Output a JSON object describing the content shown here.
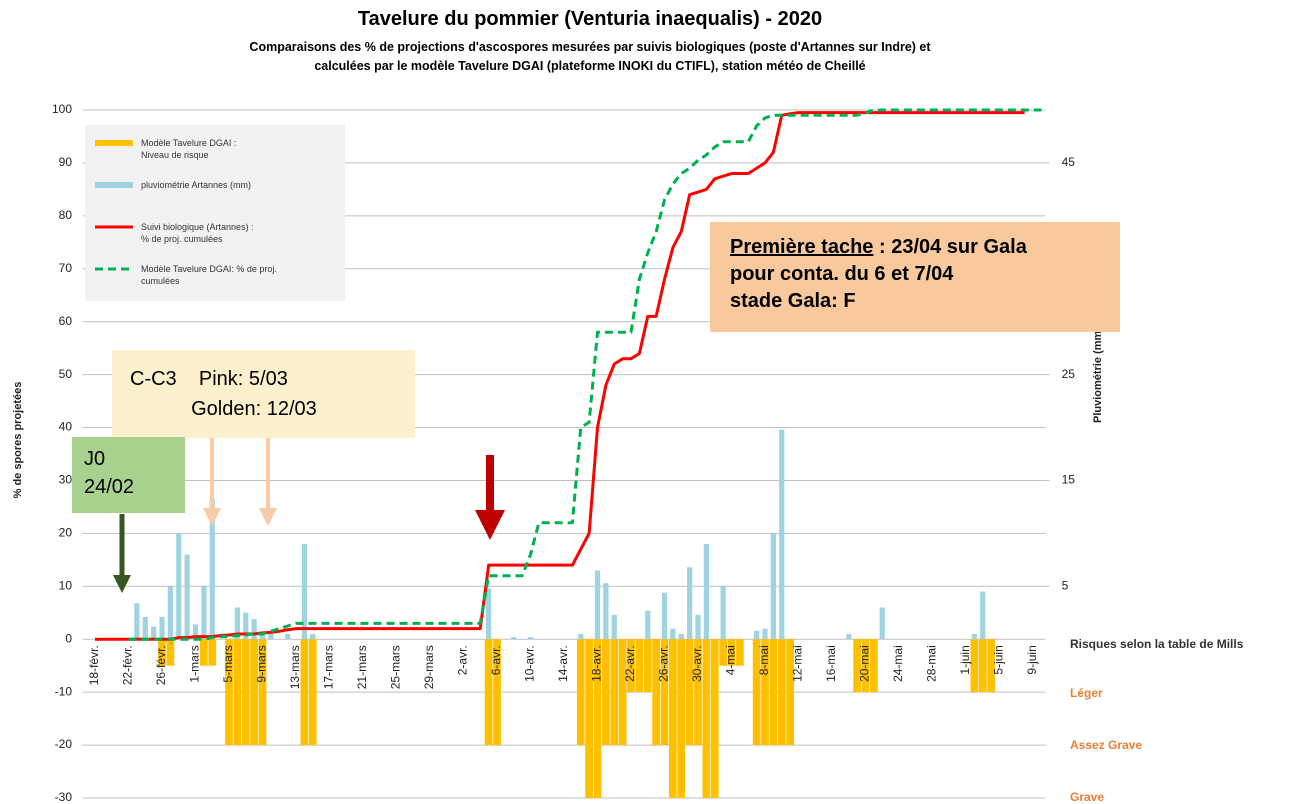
{
  "chart_data": {
    "type": "bar",
    "title": "Tavelure du pommier (Venturia inaequalis) - 2020",
    "subtitle": "Comparaisons des % de projections d'ascospores mesurées par suivis biologiques (poste d'Artannes sur Indre) et\ncalculées par le modèle Tavelure DGAI (plateforme INOKI du CTIFL), station météo de Cheillé",
    "y_label": "% de spores projetées",
    "y2_label": "Pluviométrie (mm)",
    "categories": [
      null,
      "18-févr.",
      null,
      null,
      null,
      "22-févr.",
      null,
      null,
      null,
      "26-févr.",
      null,
      null,
      null,
      "1-mars",
      null,
      null,
      null,
      "5-mars",
      null,
      null,
      null,
      "9-mars",
      null,
      null,
      null,
      "13-mars",
      null,
      null,
      null,
      "17-mars",
      null,
      null,
      null,
      "21-mars",
      null,
      null,
      null,
      "25-mars",
      null,
      null,
      null,
      "29-mars",
      null,
      null,
      null,
      "2-avr.",
      null,
      null,
      null,
      "6-avr.",
      null,
      null,
      null,
      "10-avr.",
      null,
      null,
      null,
      "14-avr.",
      null,
      null,
      null,
      "18-avr.",
      null,
      null,
      null,
      "22-avr.",
      null,
      null,
      null,
      "26-avr.",
      null,
      null,
      null,
      "30-avr.",
      null,
      null,
      null,
      "4-mai",
      null,
      null,
      null,
      "8-mai",
      null,
      null,
      null,
      "12-mai",
      null,
      null,
      null,
      "16-mai",
      null,
      null,
      null,
      "20-mai",
      null,
      null,
      null,
      "24-mai",
      null,
      null,
      null,
      "28-mai",
      null,
      null,
      null,
      "1-juin",
      null,
      null,
      null,
      "5-juin",
      null,
      null,
      null,
      "9-juin",
      null
    ],
    "series": [
      {
        "name": "Modèle Tavelure DGAI :\nNiveau de risque",
        "type": "bar",
        "axis": "y",
        "color": "#ffc000",
        "values": [
          null,
          null,
          null,
          null,
          null,
          null,
          null,
          null,
          null,
          -5,
          -5,
          null,
          null,
          null,
          -5,
          -5,
          null,
          -20,
          -20,
          -20,
          -20,
          -20,
          null,
          null,
          null,
          null,
          -20,
          -20,
          null,
          null,
          null,
          null,
          null,
          null,
          null,
          null,
          null,
          null,
          null,
          null,
          null,
          null,
          null,
          null,
          null,
          null,
          null,
          null,
          -20,
          -20,
          null,
          null,
          null,
          null,
          null,
          null,
          null,
          null,
          null,
          -20,
          -30,
          -30,
          -20,
          -20,
          -20,
          -10,
          -10,
          -10,
          -20,
          -20,
          -30,
          -30,
          -20,
          -20,
          -30,
          -30,
          -5,
          -5,
          -5,
          null,
          -20,
          -20,
          -20,
          -20,
          -20,
          null,
          null,
          null,
          null,
          null,
          null,
          null,
          -10,
          -10,
          -10,
          null,
          null,
          null,
          null,
          null,
          null,
          null,
          null,
          null,
          null,
          null,
          -10,
          -10,
          -10,
          null,
          null,
          null,
          null,
          null,
          null
        ]
      },
      {
        "name": "pluviométrie Artannes (mm)",
        "type": "bar",
        "axis": "y2",
        "color": "#9fd3e2",
        "values": [
          null,
          null,
          null,
          null,
          null,
          null,
          3.4,
          2.1,
          1.2,
          2.1,
          5,
          10,
          8,
          1.4,
          5,
          13.3,
          null,
          null,
          3,
          2.5,
          1.9,
          0.6,
          0.5,
          null,
          0.5,
          null,
          9,
          0.5,
          null,
          null,
          null,
          null,
          null,
          null,
          null,
          null,
          null,
          null,
          null,
          null,
          null,
          null,
          null,
          null,
          null,
          null,
          null,
          null,
          4.8,
          null,
          null,
          0.2,
          null,
          0.2,
          null,
          null,
          null,
          null,
          null,
          0.5,
          null,
          6.5,
          5.3,
          2.3,
          null,
          null,
          null,
          2.7,
          null,
          4.4,
          1,
          0.5,
          6.8,
          2.3,
          9,
          null,
          5,
          null,
          null,
          null,
          0.8,
          1,
          10,
          19.8,
          null,
          null,
          null,
          null,
          null,
          null,
          null,
          0.5,
          null,
          null,
          null,
          3,
          null,
          null,
          null,
          null,
          null,
          null,
          null,
          null,
          null,
          null,
          0.5,
          4.5,
          null,
          null,
          null,
          null,
          null,
          null,
          null
        ]
      },
      {
        "name": "Suivi biologique (Artannes) :\n% de proj. cumulées",
        "type": "line",
        "axis": "y",
        "color": "#ff0000",
        "dashed": false,
        "values": [
          null,
          0,
          0,
          0,
          0,
          0,
          0,
          0,
          0,
          0,
          0,
          0.3,
          0.3,
          0.5,
          0.5,
          0.5,
          0.7,
          0.8,
          1,
          1,
          1,
          1.2,
          1.3,
          1.5,
          1.8,
          2,
          2,
          2,
          2,
          2,
          2,
          2,
          2,
          2,
          2,
          2,
          2,
          2,
          2,
          2,
          2,
          2,
          2,
          2,
          2,
          2,
          2,
          2,
          14,
          14,
          14,
          14,
          14,
          14,
          14,
          14,
          14,
          14,
          14,
          17,
          20,
          40,
          48,
          52,
          53,
          53,
          54,
          61,
          61,
          68,
          74,
          77,
          84,
          84.5,
          85,
          87,
          87.5,
          88,
          88,
          88,
          89,
          90,
          92,
          99,
          99.3,
          99.5,
          99.5,
          99.5,
          99.5,
          99.5,
          99.5,
          99.5,
          99.5,
          99.5,
          99.5,
          99.5,
          99.5,
          99.5,
          99.5,
          99.5,
          99.5,
          99.5,
          99.5,
          99.5,
          99.5,
          99.5,
          99.5,
          99.5,
          99.5,
          99.5,
          99.5,
          99.5,
          99.5,
          null,
          null
        ]
      },
      {
        "name": "Modèle Tavelure DGAI: % de proj.\ncumulées",
        "type": "line",
        "axis": "y",
        "color": "#00b050",
        "dashed": true,
        "values": [
          null,
          null,
          null,
          null,
          null,
          0,
          0,
          0,
          0,
          0,
          0,
          0,
          0,
          0,
          0,
          0.3,
          0.5,
          0.5,
          0.7,
          0.8,
          1,
          1,
          1.5,
          2,
          2.5,
          3,
          3,
          3,
          3,
          3,
          3,
          3,
          3,
          3,
          3,
          3,
          3,
          3,
          3,
          3,
          3,
          3,
          3,
          3,
          3,
          3,
          3,
          3,
          12,
          12,
          12,
          12,
          12,
          16,
          22,
          22,
          22,
          22,
          22,
          40,
          41,
          58,
          58,
          58,
          58,
          58,
          68,
          73,
          77,
          83,
          86,
          88,
          89,
          90.5,
          91.5,
          93,
          94,
          94,
          94,
          94,
          97,
          98.5,
          99,
          99,
          99,
          99,
          99,
          99,
          99,
          99,
          99,
          99,
          99,
          99.5,
          100,
          100,
          100,
          100,
          100,
          100,
          100,
          100,
          100,
          100,
          100,
          100,
          100,
          100,
          100,
          100,
          100,
          100,
          100,
          100,
          100
        ]
      }
    ],
    "ylim": [
      -30,
      100
    ],
    "yticks": [
      -30,
      -20,
      -10,
      0,
      10,
      20,
      30,
      40,
      50,
      60,
      70,
      80,
      90,
      100
    ],
    "y2lim": [
      -15,
      50
    ],
    "y2ticks": [
      5,
      15,
      25,
      35,
      45
    ],
    "grid": true,
    "legend": "top-left",
    "annotations": [
      {
        "heading": "Première tache",
        "text": " : 23/04 sur Gala\npour conta. du 6 et 7/04\nstade Gala: F"
      },
      {
        "text": "C-C3    Pink: 5/03\n           Golden: 12/03"
      },
      {
        "text": "J0\n24/02"
      }
    ],
    "risk_scale": {
      "title": "Risques selon la table de Mills",
      "levels": [
        "Léger",
        "Assez Grave",
        "Grave"
      ]
    }
  }
}
